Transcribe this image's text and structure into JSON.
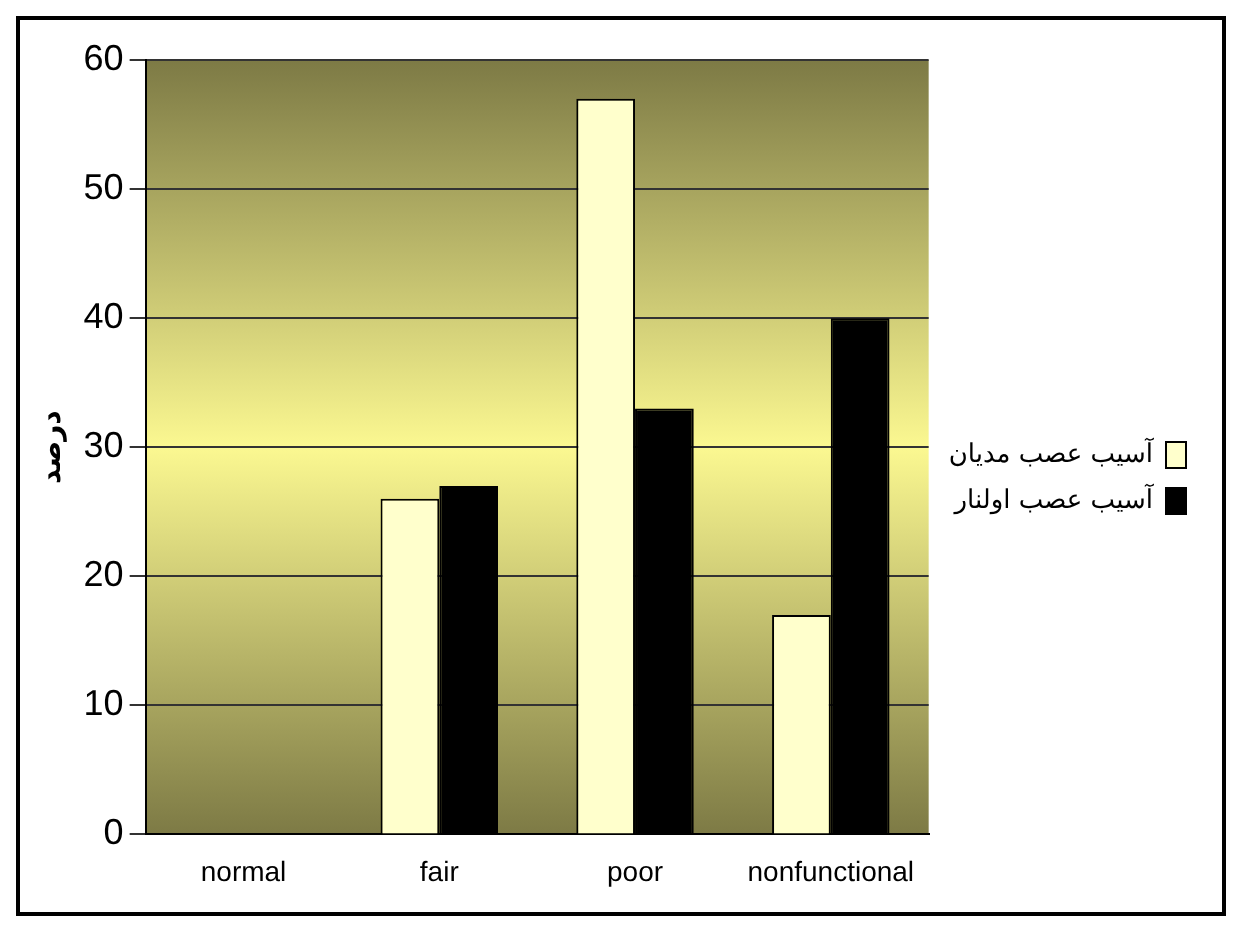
{
  "chart_data": {
    "type": "bar",
    "ylabel": "درصد",
    "categories": [
      "normal",
      "fair",
      "poor",
      "nonfunctional"
    ],
    "series": [
      {
        "name": "آسیب عصب مدیان",
        "color": "#ffffcc",
        "values": [
          0,
          26,
          57,
          17
        ]
      },
      {
        "name": "آسیب عصب اولنار",
        "color": "#000000",
        "values": [
          0,
          27,
          33,
          40
        ]
      }
    ],
    "ylim": [
      0,
      60
    ],
    "yticks": [
      0,
      10,
      20,
      30,
      40,
      50,
      60
    ],
    "grid": "y",
    "legend": "right"
  }
}
